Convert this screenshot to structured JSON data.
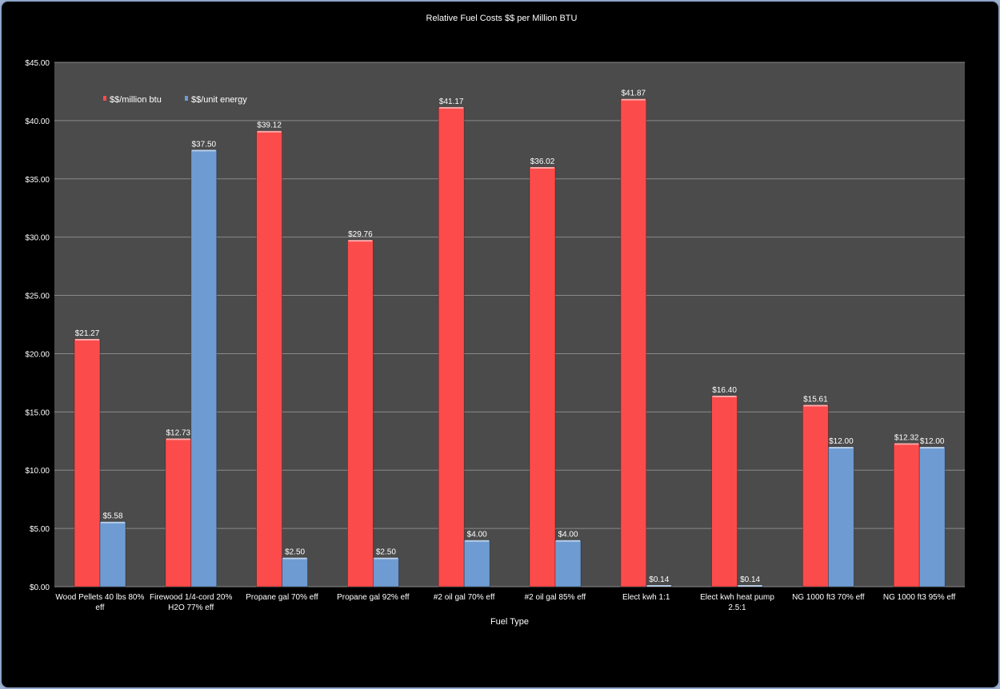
{
  "chart_data": {
    "type": "bar",
    "title": "Relative Fuel Costs $$ per Million BTU",
    "xlabel": "Fuel Type",
    "ylabel": "",
    "ylim": [
      0,
      45
    ],
    "ytick_step": 5,
    "ytick_labels": [
      "$0.00",
      "$5.00",
      "$10.00",
      "$15.00",
      "$20.00",
      "$25.00",
      "$30.00",
      "$35.00",
      "$40.00",
      "$45.00"
    ],
    "grid": true,
    "legend_position": "top-left",
    "categories": [
      [
        "Wood Pellets 40 lbs 80%",
        "eff"
      ],
      [
        "Firewood 1/4-cord 20%",
        "H2O 77% eff"
      ],
      [
        "Propane gal 70% eff"
      ],
      [
        "Propane gal 92% eff"
      ],
      [
        "#2 oil gal 70% eff"
      ],
      [
        "#2 oil gal 85% eff"
      ],
      [
        "Elect kwh 1:1"
      ],
      [
        "Elect kwh heat pump",
        "2.5:1"
      ],
      [
        "NG 1000 ft3 70% eff"
      ],
      [
        "NG 1000 ft3 95% eff"
      ]
    ],
    "series": [
      {
        "name": "$$/million btu",
        "color": "#fc4b4b",
        "values": [
          21.27,
          12.73,
          39.12,
          29.76,
          41.17,
          36.02,
          41.87,
          16.4,
          15.61,
          12.32
        ],
        "labels": [
          "$21.27",
          "$12.73",
          "$39.12",
          "$29.76",
          "$41.17",
          "$36.02",
          "$41.87",
          "$16.40",
          "$15.61",
          "$12.32"
        ]
      },
      {
        "name": "$$/unit energy",
        "color": "#6e9bd2",
        "values": [
          5.58,
          37.5,
          2.5,
          2.5,
          4.0,
          4.0,
          0.14,
          0.14,
          12.0,
          12.0
        ],
        "labels": [
          "$5.58",
          "$37.50",
          "$2.50",
          "$2.50",
          "$4.00",
          "$4.00",
          "$0.14",
          "$0.14",
          "$12.00",
          "$12.00"
        ]
      }
    ],
    "colors": {
      "plot_background": "#4b4b4b",
      "gridline": "#8a8a8a",
      "outer_background": "#000000"
    }
  }
}
